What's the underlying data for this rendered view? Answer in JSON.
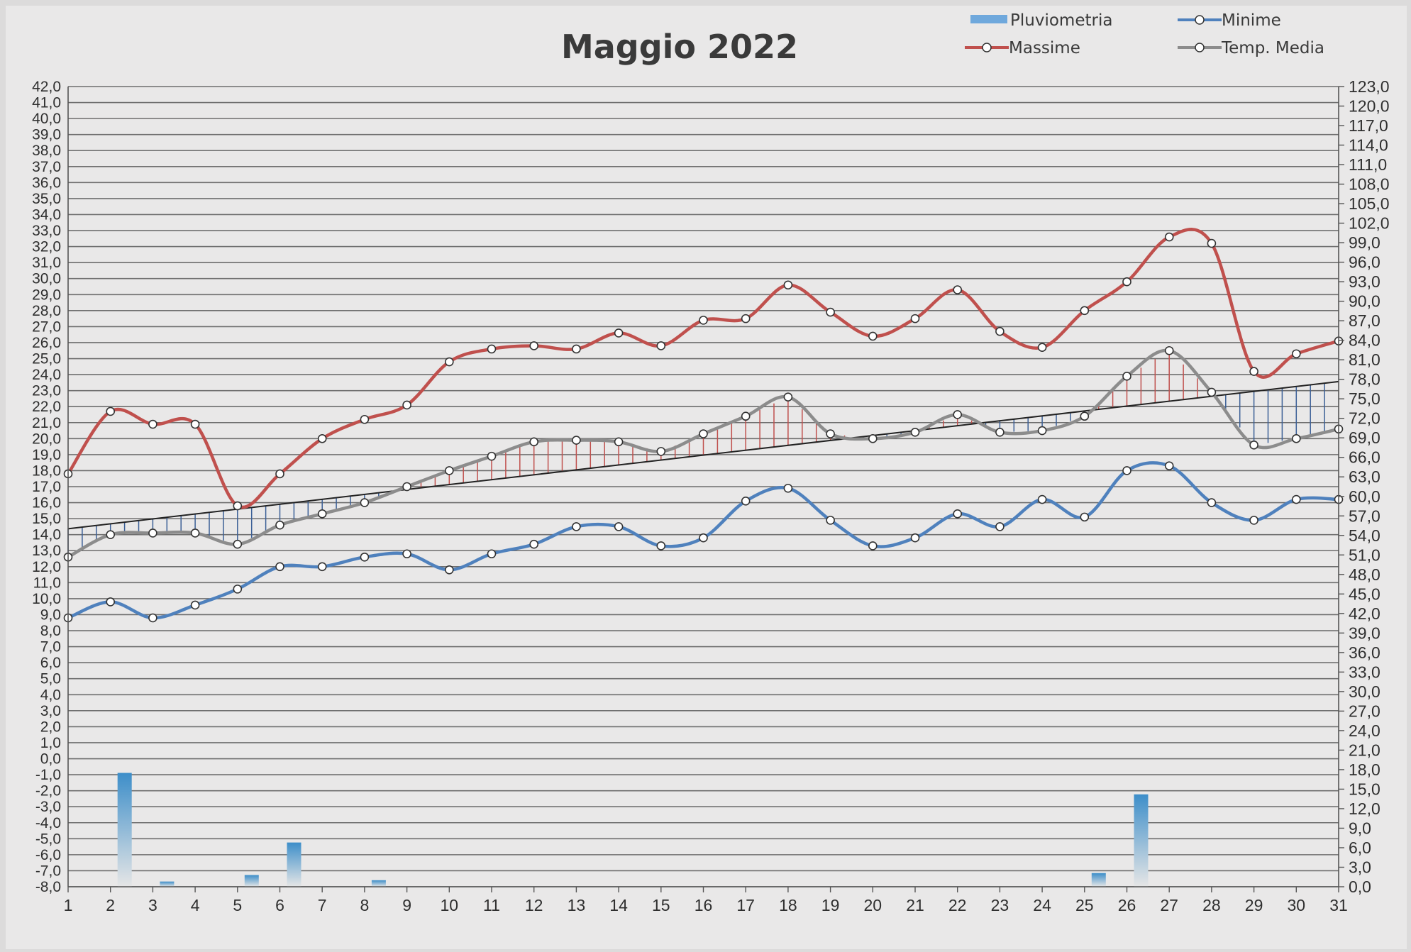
{
  "chart_data": {
    "type": "line",
    "title": "Maggio 2022",
    "categories": [
      "1",
      "2",
      "3",
      "4",
      "5",
      "6",
      "7",
      "8",
      "9",
      "10",
      "11",
      "12",
      "13",
      "14",
      "15",
      "16",
      "17",
      "18",
      "19",
      "20",
      "21",
      "22",
      "23",
      "24",
      "25",
      "26",
      "27",
      "28",
      "29",
      "30",
      "31"
    ],
    "series": [
      {
        "name": "Massime",
        "axis": "left",
        "color": "#c0504d",
        "values": [
          17.8,
          21.7,
          20.9,
          20.9,
          15.8,
          17.8,
          20.0,
          21.2,
          22.1,
          24.8,
          25.6,
          25.8,
          25.6,
          26.6,
          25.8,
          27.4,
          27.5,
          29.6,
          27.9,
          26.4,
          27.5,
          29.3,
          26.7,
          25.7,
          28.0,
          29.8,
          32.6,
          32.2,
          24.2,
          25.3,
          26.1
        ]
      },
      {
        "name": "Minime",
        "axis": "left",
        "color": "#4f81bd",
        "values": [
          8.8,
          9.8,
          8.8,
          9.6,
          10.6,
          12.0,
          12.0,
          12.6,
          12.8,
          11.8,
          12.8,
          13.4,
          14.5,
          14.5,
          13.3,
          13.8,
          16.1,
          16.9,
          14.9,
          13.3,
          13.8,
          15.3,
          14.5,
          16.2,
          15.1,
          18.0,
          18.3,
          16.0,
          14.9,
          16.2,
          16.2
        ]
      },
      {
        "name": "Temp. Media",
        "axis": "left",
        "color": "#8c8c8c",
        "values": [
          12.6,
          14.0,
          14.1,
          14.1,
          13.4,
          14.6,
          15.3,
          16.0,
          17.0,
          18.0,
          18.9,
          19.8,
          19.9,
          19.8,
          19.2,
          20.3,
          21.4,
          22.6,
          20.3,
          20.0,
          20.4,
          21.5,
          20.4,
          20.5,
          21.4,
          23.9,
          25.5,
          22.9,
          19.6,
          20.0,
          20.6
        ]
      },
      {
        "name": "Pluviometria",
        "axis": "right",
        "type": "bar",
        "color": "#6fa8dc",
        "values": [
          0,
          17.5,
          0.8,
          0,
          1.8,
          6.8,
          0,
          1.0,
          0,
          0,
          0,
          0,
          0,
          0,
          0,
          0,
          0,
          0,
          0,
          0,
          0,
          0,
          0,
          0,
          2.1,
          14.2,
          0,
          0,
          0,
          0,
          0
        ]
      }
    ],
    "y_left": {
      "min": -8,
      "max": 42,
      "step": 1
    },
    "y_right": {
      "min": 0,
      "max": 123,
      "step": 3
    },
    "legend": [
      "Pluviometria",
      "Minime",
      "Massime",
      "Temp. Media"
    ],
    "legend_position": "top-right",
    "grid": true
  }
}
